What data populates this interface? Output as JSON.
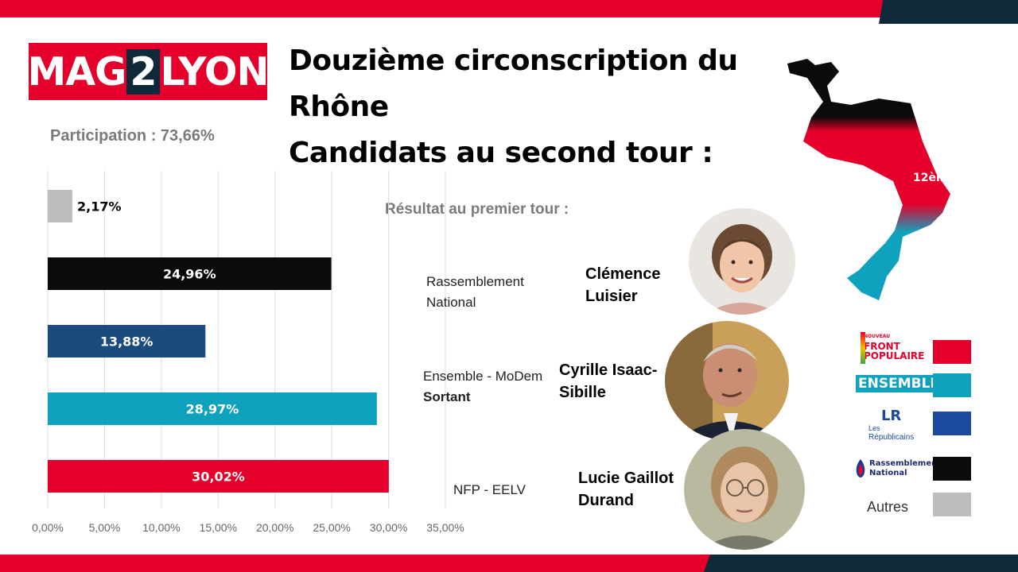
{
  "brand": {
    "logo_part1": "MAG",
    "logo_part2": "2",
    "logo_part3": "LYON"
  },
  "title": {
    "line1": "Douzième circonscription du",
    "line2": "Rhône",
    "line3": "Candidats au second tour :"
  },
  "participation": "Participation : 73,66%",
  "result_label": "Résultat au premier tour :",
  "colors": {
    "red": "#e4002b",
    "dark": "#0e2a3a",
    "nfp": "#e4002b",
    "ensemble": "#0fa2bf",
    "lr": "#1b4a7f",
    "rn": "#0b0b0b",
    "autres": "#bdbdbd"
  },
  "chart_data": {
    "type": "bar",
    "orientation": "horizontal",
    "categories": [
      "Autres",
      "RN",
      "LR",
      "Ensemble",
      "NFP"
    ],
    "values": [
      2.17,
      24.96,
      13.88,
      28.97,
      30.02
    ],
    "value_labels": [
      "2,17%",
      "24,96%",
      "13,88%",
      "28,97%",
      "30,02%"
    ],
    "colors": [
      "#bdbdbd",
      "#0b0b0b",
      "#1b4a7f",
      "#0fa2bf",
      "#e4002b"
    ],
    "xlim": [
      0,
      35
    ],
    "xticks": [
      "0,00%",
      "5,00%",
      "10,00%",
      "15,00%",
      "20,00%",
      "25,00%",
      "30,00%",
      "35,00%"
    ],
    "grid": true
  },
  "candidates": [
    {
      "party_line1": "Rassemblement",
      "party_line2": "National",
      "name_line1": "Clémence",
      "name_line2": "Luisier"
    },
    {
      "party_line1": "Ensemble - MoDem",
      "party_line2": "Sortant",
      "name_line1": "Cyrille Isaac-",
      "name_line2": "Sibille"
    },
    {
      "party_line1": "NFP - EELV",
      "party_line2": "",
      "name_line1": "Lucie Gaillot",
      "name_line2": "Durand"
    }
  ],
  "map": {
    "label": "12ème"
  },
  "legend": {
    "nfp_line1": "NOUVEAU",
    "nfp_line2": "FRONT",
    "nfp_line3": "POPULAIRE",
    "ensemble": "ENSEMBLE",
    "lr_mark": "LR",
    "lr_line1": "Les",
    "lr_line2": "Républicains",
    "rn_line1": "Rassemblement",
    "rn_line2": "National",
    "autres": "Autres"
  }
}
